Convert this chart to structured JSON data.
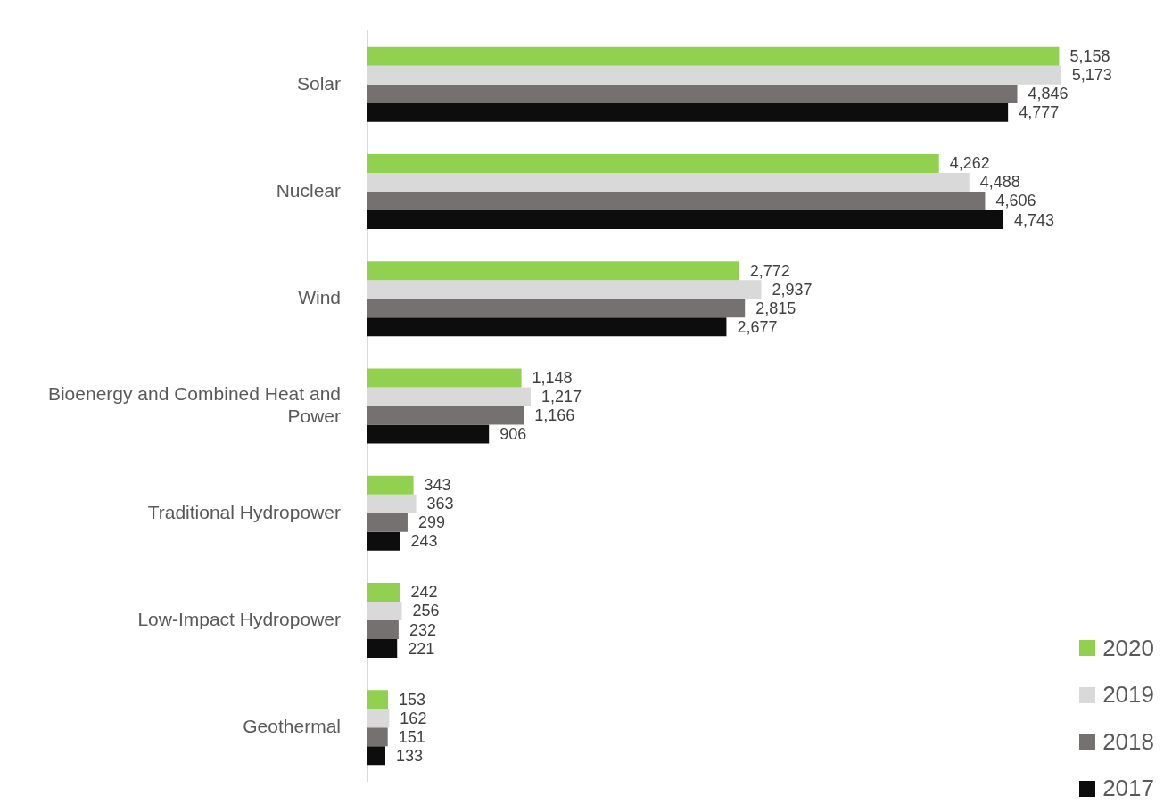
{
  "chart_data": {
    "type": "bar",
    "orientation": "horizontal",
    "categories": [
      "Solar",
      "Nuclear",
      "Wind",
      "Bioenergy and Combined Heat and Power",
      "Traditional Hydropower",
      "Low-Impact Hydropower",
      "Geothermal"
    ],
    "series": [
      {
        "name": "2020",
        "color": "#92d050",
        "values": [
          5158,
          4262,
          2772,
          1148,
          343,
          242,
          153
        ],
        "value_labels": [
          "5,158",
          "4,262",
          "2,772",
          "1,148",
          "343",
          "242",
          "153"
        ]
      },
      {
        "name": "2019",
        "color": "#d9d9d9",
        "values": [
          5173,
          4488,
          2937,
          1217,
          363,
          256,
          162
        ],
        "value_labels": [
          "5,173",
          "4,488",
          "2,937",
          "1,217",
          "363",
          "256",
          "162"
        ]
      },
      {
        "name": "2018",
        "color": "#767171",
        "values": [
          4846,
          4606,
          2815,
          1166,
          299,
          232,
          151
        ],
        "value_labels": [
          "4,846",
          "4,606",
          "2,815",
          "1,166",
          "299",
          "232",
          "151"
        ]
      },
      {
        "name": "2017",
        "color": "#0d0d0d",
        "values": [
          4777,
          4743,
          2677,
          906,
          243,
          221,
          133
        ],
        "value_labels": [
          "4,777",
          "4,743",
          "2,677",
          "906",
          "243",
          "221",
          "133"
        ]
      }
    ],
    "legend": "bottom right",
    "tick_labels": "y"
  }
}
